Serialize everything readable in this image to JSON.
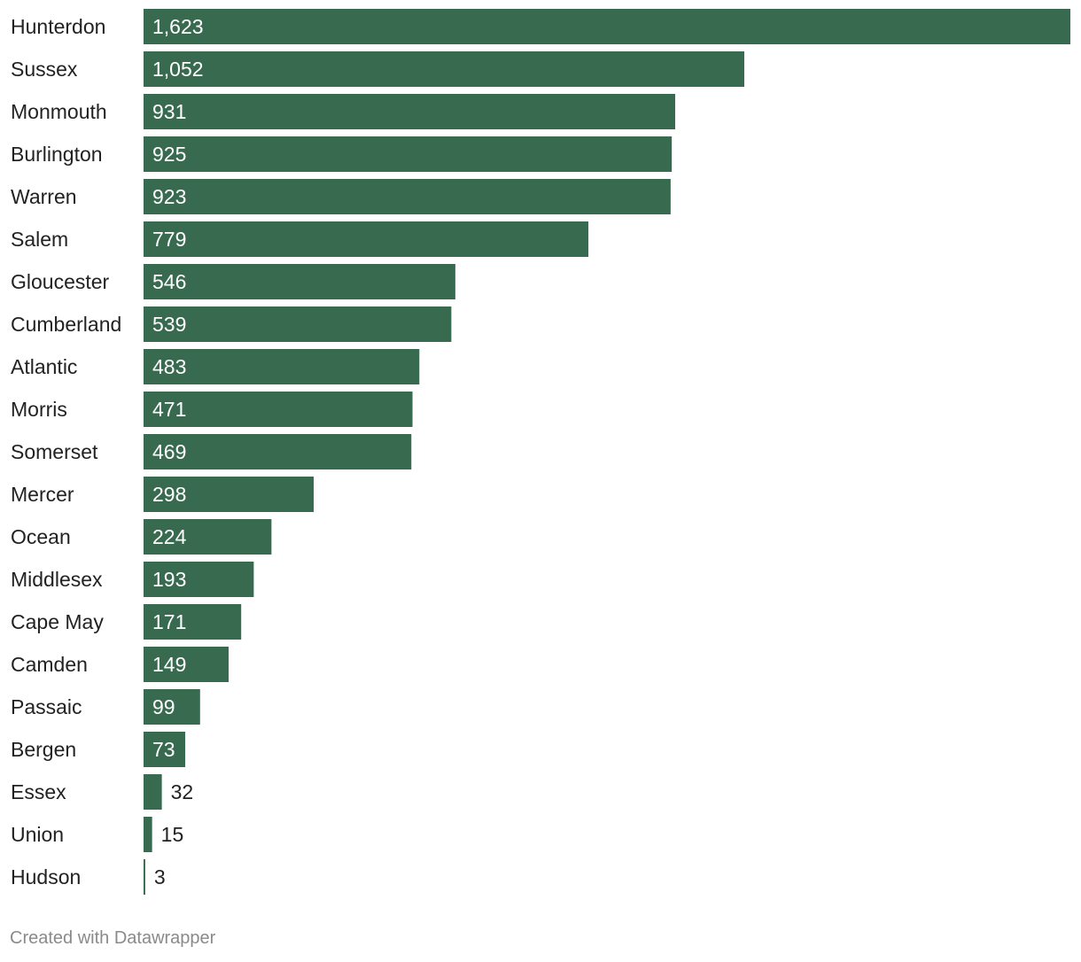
{
  "chart_data": {
    "type": "bar",
    "orientation": "horizontal",
    "title": "",
    "xlabel": "",
    "ylabel": "",
    "categories": [
      "Hunterdon",
      "Sussex",
      "Monmouth",
      "Burlington",
      "Warren",
      "Salem",
      "Gloucester",
      "Cumberland",
      "Atlantic",
      "Morris",
      "Somerset",
      "Mercer",
      "Ocean",
      "Middlesex",
      "Cape May",
      "Camden",
      "Passaic",
      "Bergen",
      "Essex",
      "Union",
      "Hudson"
    ],
    "values": [
      1623,
      1052,
      931,
      925,
      923,
      779,
      546,
      539,
      483,
      471,
      469,
      298,
      224,
      193,
      171,
      149,
      99,
      73,
      32,
      15,
      3
    ],
    "value_labels": [
      "1,623",
      "1,052",
      "931",
      "925",
      "923",
      "779",
      "546",
      "539",
      "483",
      "471",
      "469",
      "298",
      "224",
      "193",
      "171",
      "149",
      "99",
      "73",
      "32",
      "15",
      "3"
    ],
    "xlim": [
      0,
      1623
    ],
    "grid": false,
    "bar_color": "#386a4f"
  },
  "footer": {
    "credit": "Created with Datawrapper"
  }
}
